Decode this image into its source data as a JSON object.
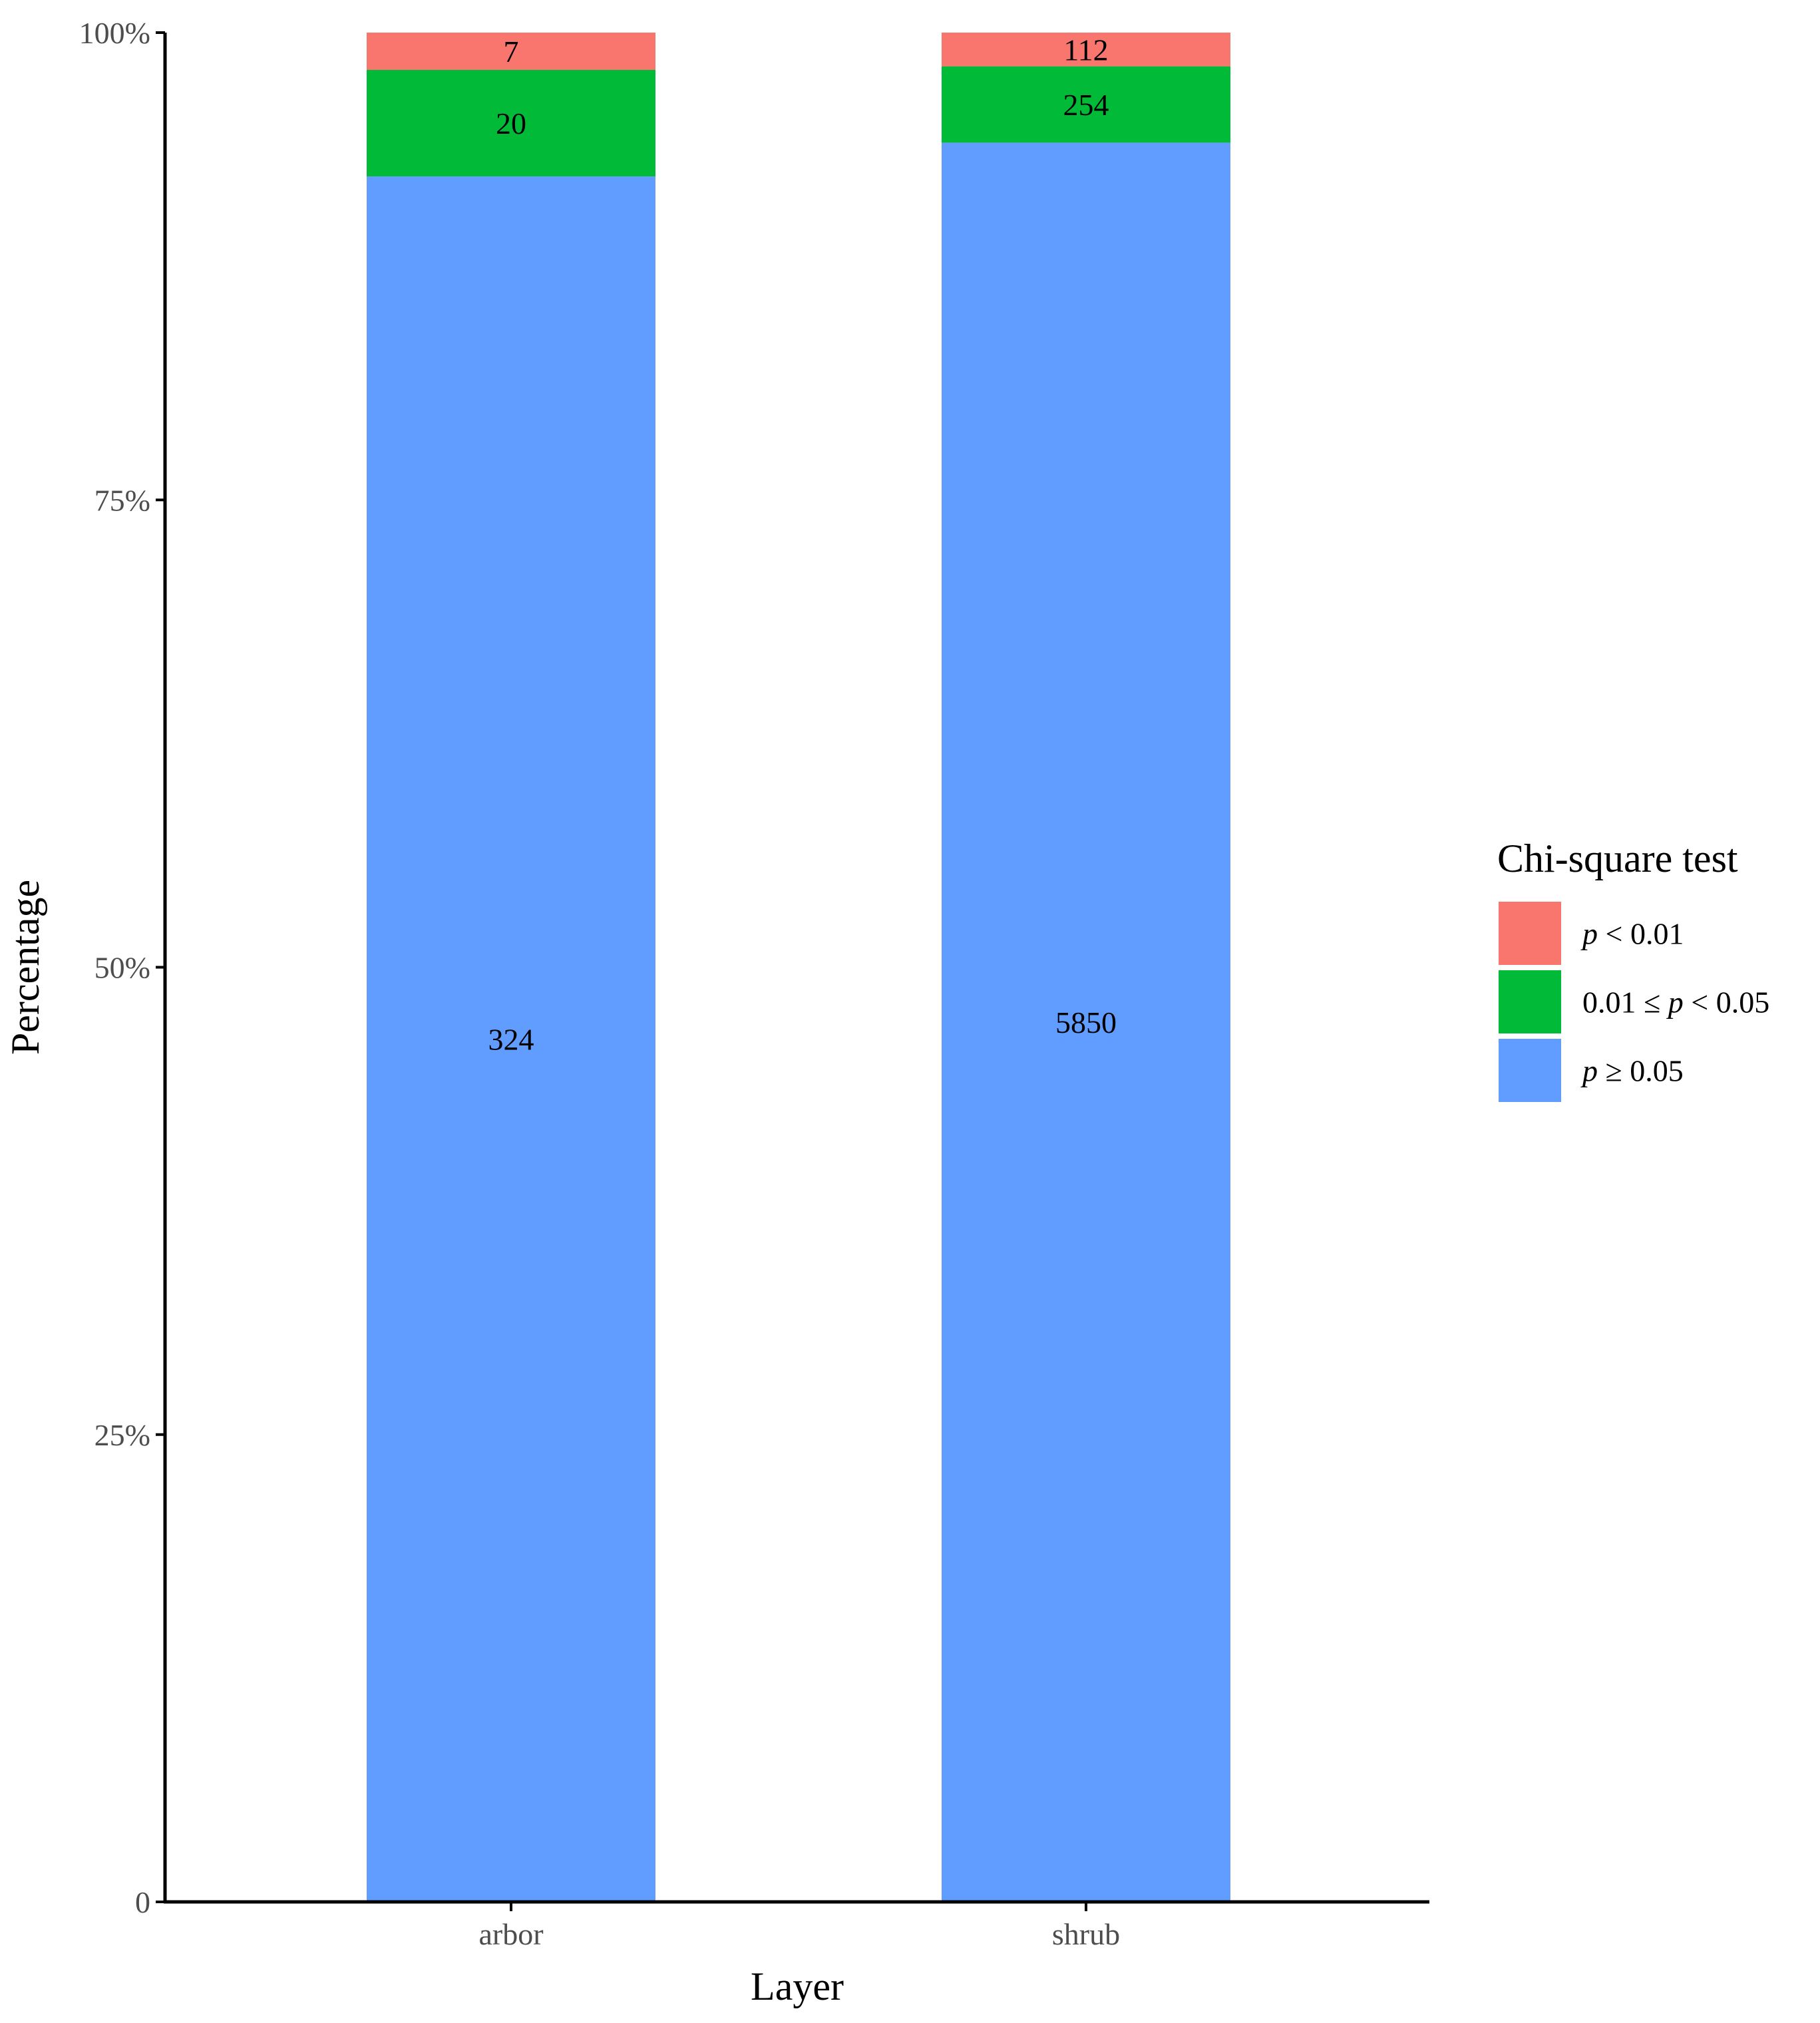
{
  "chart_data": {
    "type": "bar",
    "stacked": true,
    "normalized": true,
    "categories": [
      "arbor",
      "shrub"
    ],
    "series": [
      {
        "name": "p ≥ 0.05",
        "key": "ns",
        "color": "#619CFF",
        "values": [
          324,
          5850
        ]
      },
      {
        "name": "0.01 ≤ p < 0.05",
        "key": "mid",
        "color": "#00BA38",
        "values": [
          20,
          254
        ]
      },
      {
        "name": "p < 0.01",
        "key": "sig",
        "color": "#F8766D",
        "values": [
          7,
          112
        ]
      }
    ],
    "xlabel": "Layer",
    "ylabel": "Percentage",
    "ylim": [
      0,
      1
    ],
    "yticks": [
      {
        "value": 0,
        "label": "0"
      },
      {
        "value": 0.25,
        "label": "25%"
      },
      {
        "value": 0.5,
        "label": "50%"
      },
      {
        "value": 0.75,
        "label": "75%"
      },
      {
        "value": 1,
        "label": "100%"
      }
    ],
    "legend": {
      "title": "Chi-square test",
      "position": "right",
      "entries": [
        {
          "key": "sig",
          "parts": [
            [
              "p",
              true
            ],
            [
              " < 0.01",
              false
            ]
          ],
          "color": "#F8766D"
        },
        {
          "key": "mid",
          "parts": [
            [
              "0.01 ≤ ",
              false
            ],
            [
              "p",
              true
            ],
            [
              " < 0.05",
              false
            ]
          ],
          "color": "#00BA38"
        },
        {
          "key": "ns",
          "parts": [
            [
              "p",
              true
            ],
            [
              " ≥ 0.05",
              false
            ]
          ],
          "color": "#619CFF"
        }
      ]
    },
    "grid": false
  }
}
